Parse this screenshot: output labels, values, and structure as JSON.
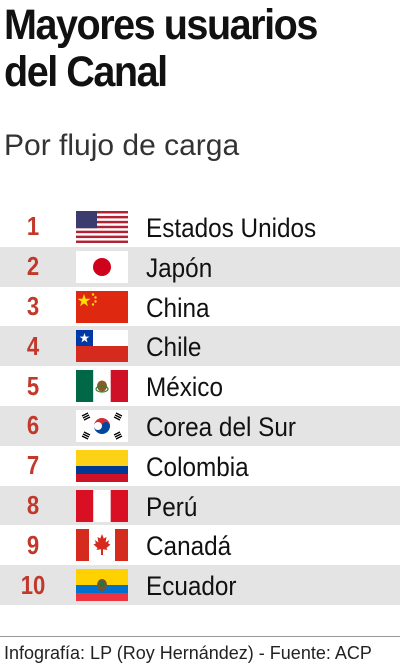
{
  "title": "Mayores usuarios del Canal",
  "subtitle": "Por flujo de carga",
  "ranking": [
    {
      "rank": "1",
      "country": "Estados Unidos",
      "flag_icon": "usa-flag-icon"
    },
    {
      "rank": "2",
      "country": "Japón",
      "flag_icon": "japan-flag-icon"
    },
    {
      "rank": "3",
      "country": "China",
      "flag_icon": "china-flag-icon"
    },
    {
      "rank": "4",
      "country": "Chile",
      "flag_icon": "chile-flag-icon"
    },
    {
      "rank": "5",
      "country": "México",
      "flag_icon": "mexico-flag-icon"
    },
    {
      "rank": "6",
      "country": "Corea del Sur",
      "flag_icon": "south-korea-flag-icon"
    },
    {
      "rank": "7",
      "country": "Colombia",
      "flag_icon": "colombia-flag-icon"
    },
    {
      "rank": "8",
      "country": "Perú",
      "flag_icon": "peru-flag-icon"
    },
    {
      "rank": "9",
      "country": "Canadá",
      "flag_icon": "canada-flag-icon"
    },
    {
      "rank": "10",
      "country": "Ecuador",
      "flag_icon": "ecuador-flag-icon"
    }
  ],
  "footer": "Infografía: LP (Roy Hernández) - Fuente: ACP",
  "colors": {
    "rank_number": "#c0392b",
    "row_shade": "#e4e4e4"
  }
}
